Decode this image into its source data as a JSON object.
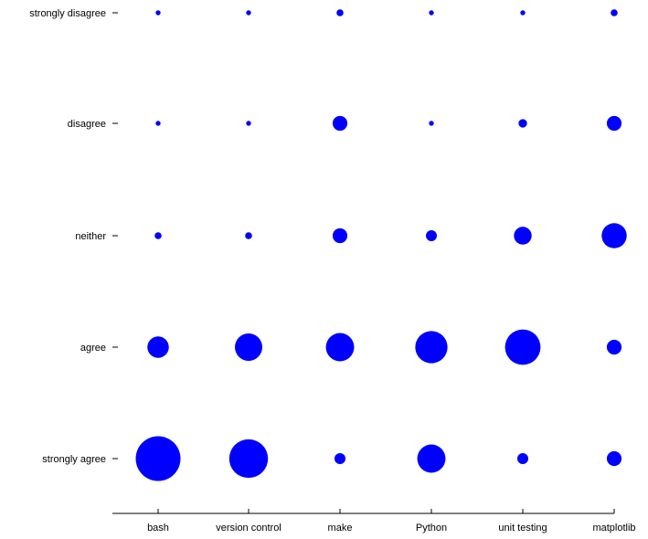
{
  "chart_data": {
    "type": "scatter",
    "title": "",
    "xlabel": "",
    "ylabel": "",
    "categories": [
      "bash",
      "version control",
      "make",
      "Python",
      "unit testing",
      "matplotlib"
    ],
    "levels": [
      "strongly disagree",
      "disagree",
      "neither",
      "agree",
      "strongly agree"
    ],
    "size_metric": "bubble area proportional to count",
    "series": [
      {
        "values": [
          1,
          1,
          2,
          1,
          1,
          2
        ]
      },
      {
        "values": [
          1,
          1,
          9,
          1,
          3,
          9
        ]
      },
      {
        "values": [
          2,
          2,
          9,
          5,
          13,
          26
        ]
      },
      {
        "values": [
          19,
          31,
          33,
          43,
          52,
          9
        ]
      },
      {
        "values": [
          83,
          62,
          5,
          33,
          5,
          9
        ]
      }
    ],
    "grid": false,
    "legend": "none",
    "colors": {
      "marker": "#0000ff",
      "axis": "#000000",
      "background": "#ffffff"
    }
  }
}
